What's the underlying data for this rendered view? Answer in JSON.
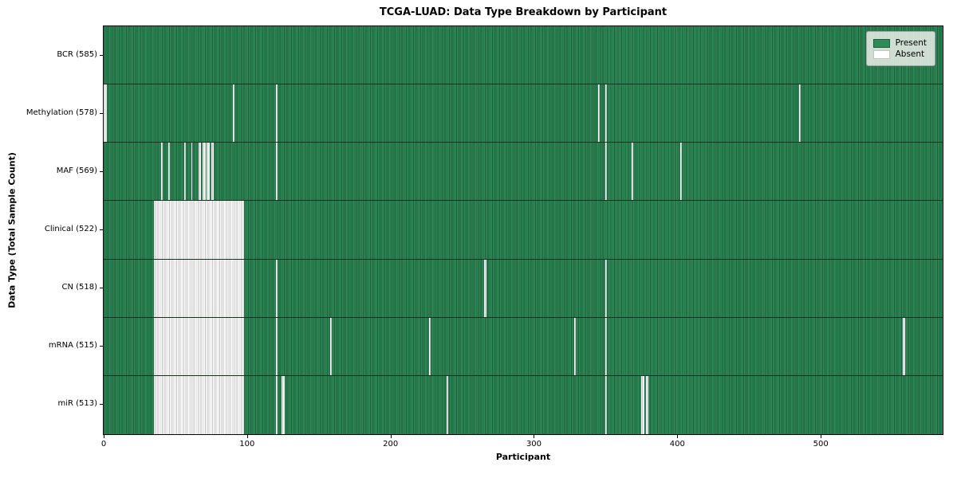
{
  "title": "TCGA-LUAD: Data Type Breakdown by Participant",
  "colors": {
    "present": "#2e8b57",
    "present_edge": "#1f5e3b",
    "absent": "#ffffff",
    "absent_edge": "#c3c6c3"
  },
  "legend": {
    "items": [
      {
        "label": "Present",
        "color": "#2e8b57"
      },
      {
        "label": "Absent",
        "color": "#ffffff"
      }
    ]
  },
  "chart_data": {
    "type": "heatmap",
    "title": "TCGA-LUAD: Data Type Breakdown by Participant",
    "xlabel": "Participant",
    "ylabel": "Data Type (Total Sample Count)",
    "x_ticks": [
      0,
      100,
      200,
      300,
      400,
      500
    ],
    "x_range": [
      0,
      585
    ],
    "n_participants": 585,
    "legend_entries": [
      "Present",
      "Absent"
    ],
    "legend_position": "upper right",
    "grid": false,
    "rows": [
      {
        "name": "BCR",
        "label": "BCR (585)",
        "present_count": 585,
        "absent_count": 0,
        "absent_runs": []
      },
      {
        "name": "Methylation",
        "label": "Methylation (578)",
        "present_count": 578,
        "absent_count": 7,
        "absent_runs": [
          [
            0,
            2
          ],
          [
            90,
            1
          ],
          [
            120,
            1
          ],
          [
            345,
            1
          ],
          [
            350,
            1
          ],
          [
            485,
            1
          ]
        ]
      },
      {
        "name": "MAF",
        "label": "MAF (569)",
        "present_count": 569,
        "absent_count": 16,
        "absent_runs": [
          [
            40,
            1
          ],
          [
            45,
            1
          ],
          [
            56,
            1
          ],
          [
            61,
            1
          ],
          [
            66,
            2
          ],
          [
            69,
            2
          ],
          [
            72,
            2
          ],
          [
            75,
            2
          ],
          [
            120,
            1
          ],
          [
            350,
            1
          ],
          [
            368,
            1
          ],
          [
            402,
            1
          ]
        ]
      },
      {
        "name": "Clinical",
        "label": "Clinical (522)",
        "present_count": 522,
        "absent_count": 63,
        "absent_runs": [
          [
            35,
            63
          ]
        ]
      },
      {
        "name": "CN",
        "label": "CN (518)",
        "present_count": 518,
        "absent_count": 67,
        "absent_runs": [
          [
            35,
            63
          ],
          [
            120,
            1
          ],
          [
            265,
            2
          ],
          [
            350,
            1
          ]
        ]
      },
      {
        "name": "mRNA",
        "label": "mRNA (515)",
        "present_count": 515,
        "absent_count": 70,
        "absent_runs": [
          [
            35,
            63
          ],
          [
            120,
            1
          ],
          [
            158,
            1
          ],
          [
            227,
            1
          ],
          [
            328,
            1
          ],
          [
            350,
            1
          ],
          [
            557,
            2
          ]
        ]
      },
      {
        "name": "miR",
        "label": "miR (513)",
        "present_count": 513,
        "absent_count": 72,
        "absent_runs": [
          [
            35,
            63
          ],
          [
            120,
            1
          ],
          [
            124,
            2
          ],
          [
            239,
            1
          ],
          [
            350,
            1
          ],
          [
            375,
            2
          ],
          [
            378,
            2
          ]
        ]
      }
    ]
  }
}
